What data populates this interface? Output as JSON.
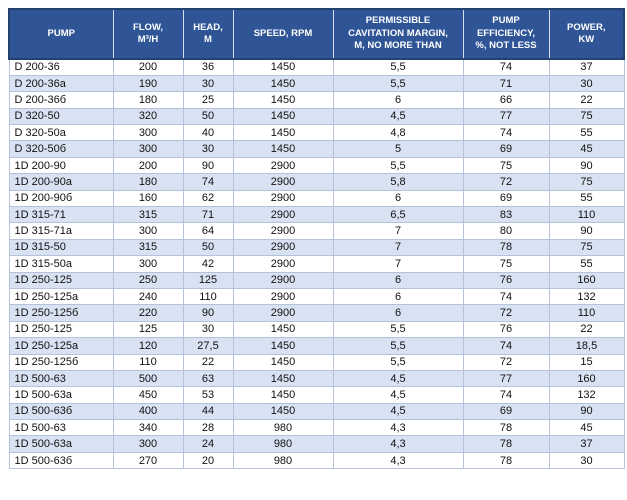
{
  "colors": {
    "header_bg": "#2F5597",
    "header_text": "#FFFFFF",
    "row_alt_bg": "#D9E2F2",
    "grid_line": "#B6C2D9"
  },
  "table": {
    "columns": [
      {
        "id": "pump",
        "label": "PUMP"
      },
      {
        "id": "flow",
        "label": "FLOW,\nM³/H"
      },
      {
        "id": "head",
        "label": "HEAD,\nM"
      },
      {
        "id": "speed",
        "label": "SPEED, RPM"
      },
      {
        "id": "cavitation",
        "label": "PERMISSIBLE\nCAVITATION MARGIN,\nM, NO MORE THAN"
      },
      {
        "id": "efficiency",
        "label": "PUMP\nEFFICIENCY,\n%, NOT LESS"
      },
      {
        "id": "power",
        "label": "POWER,\nKW"
      }
    ],
    "rows": [
      [
        "D 200-36",
        "200",
        "36",
        "1450",
        "5,5",
        "74",
        "37"
      ],
      [
        "D 200-36a",
        "190",
        "30",
        "1450",
        "5,5",
        "71",
        "30"
      ],
      [
        "D 200-36б",
        "180",
        "25",
        "1450",
        "6",
        "66",
        "22"
      ],
      [
        "D 320-50",
        "320",
        "50",
        "1450",
        "4,5",
        "77",
        "75"
      ],
      [
        "D 320-50a",
        "300",
        "40",
        "1450",
        "4,8",
        "74",
        "55"
      ],
      [
        "D 320-50б",
        "300",
        "30",
        "1450",
        "5",
        "69",
        "45"
      ],
      [
        "1D 200-90",
        "200",
        "90",
        "2900",
        "5,5",
        "75",
        "90"
      ],
      [
        "1D 200-90a",
        "180",
        "74",
        "2900",
        "5,8",
        "72",
        "75"
      ],
      [
        "1D 200-90б",
        "160",
        "62",
        "2900",
        "6",
        "69",
        "55"
      ],
      [
        "1D 315-71",
        "315",
        "71",
        "2900",
        "6,5",
        "83",
        "110"
      ],
      [
        "1D 315-71a",
        "300",
        "64",
        "2900",
        "7",
        "80",
        "90"
      ],
      [
        "1D 315-50",
        "315",
        "50",
        "2900",
        "7",
        "78",
        "75"
      ],
      [
        "1D 315-50a",
        "300",
        "42",
        "2900",
        "7",
        "75",
        "55"
      ],
      [
        "1D 250-125",
        "250",
        "125",
        "2900",
        "6",
        "76",
        "160"
      ],
      [
        "1D 250-125a",
        "240",
        "110",
        "2900",
        "6",
        "74",
        "132"
      ],
      [
        "1D 250-125б",
        "220",
        "90",
        "2900",
        "6",
        "72",
        "110"
      ],
      [
        "1D 250-125",
        "125",
        "30",
        "1450",
        "5,5",
        "76",
        "22"
      ],
      [
        "1D 250-125a",
        "120",
        "27,5",
        "1450",
        "5,5",
        "74",
        "18,5"
      ],
      [
        "1D 250-125б",
        "110",
        "22",
        "1450",
        "5,5",
        "72",
        "15"
      ],
      [
        "1D 500-63",
        "500",
        "63",
        "1450",
        "4,5",
        "77",
        "160"
      ],
      [
        "1D 500-63a",
        "450",
        "53",
        "1450",
        "4,5",
        "74",
        "132"
      ],
      [
        "1D 500-63б",
        "400",
        "44",
        "1450",
        "4,5",
        "69",
        "90"
      ],
      [
        "1D 500-63",
        "340",
        "28",
        "980",
        "4,3",
        "78",
        "45"
      ],
      [
        "1D 500-63a",
        "300",
        "24",
        "980",
        "4,3",
        "78",
        "37"
      ],
      [
        "1D 500-63б",
        "270",
        "20",
        "980",
        "4,3",
        "78",
        "30"
      ]
    ]
  }
}
